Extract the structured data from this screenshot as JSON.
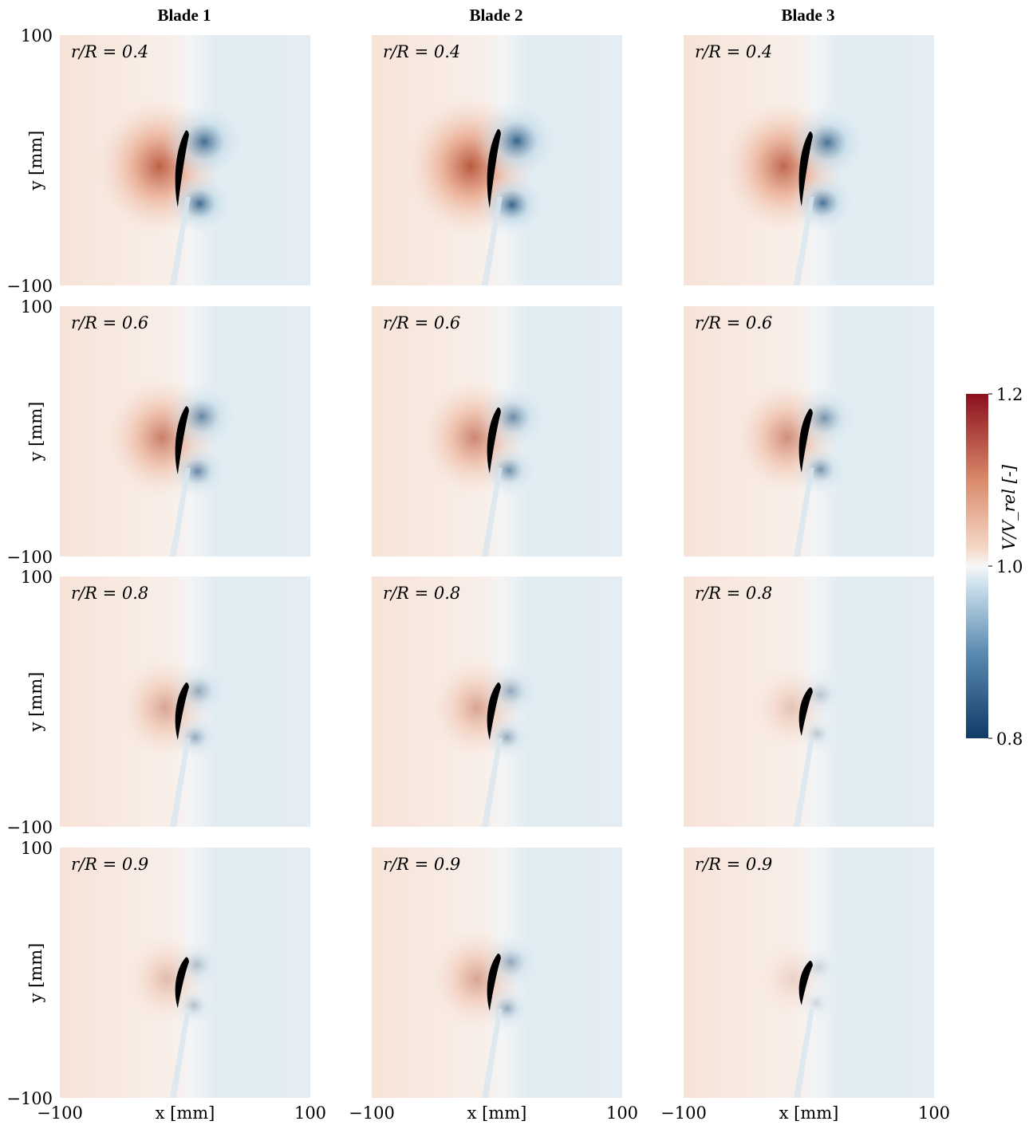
{
  "chart_data": {
    "type": "heatmap",
    "columns": [
      "Blade 1",
      "Blade 2",
      "Blade 3"
    ],
    "rows": [
      {
        "label": "r/R = 0.4",
        "r_over_R": 0.4
      },
      {
        "label": "r/R = 0.6",
        "r_over_R": 0.6
      },
      {
        "label": "r/R = 0.8",
        "r_over_R": 0.8
      },
      {
        "label": "r/R = 0.9",
        "r_over_R": 0.9
      }
    ],
    "xlabel": "x [mm]",
    "ylabel": "y [mm]",
    "xlim": [
      -100,
      100
    ],
    "ylim": [
      -100,
      100
    ],
    "x_tick_labels": [
      "−100",
      "100"
    ],
    "y_tick_labels": [
      "100",
      "−100"
    ],
    "colorbar": {
      "label": "V/V_rel [-]",
      "range": [
        0.8,
        1.2
      ],
      "tick_labels": [
        "1.2",
        "1.0",
        "0.8"
      ],
      "colormap": "RdBu_r",
      "color_high": "#8b0f1d",
      "color_mid": "#f7f7f7",
      "color_low": "#0f3b66"
    },
    "panel_intensity": [
      [
        0.95,
        1.0,
        0.9
      ],
      [
        0.75,
        0.7,
        0.65
      ],
      [
        0.5,
        0.5,
        0.3
      ],
      [
        0.35,
        0.5,
        0.2
      ]
    ]
  },
  "titles": {
    "col1": "Blade 1",
    "col2": "Blade 2",
    "col3": "Blade 3"
  },
  "colors": {
    "airfoil": "#000000",
    "background": "#ffffff"
  }
}
